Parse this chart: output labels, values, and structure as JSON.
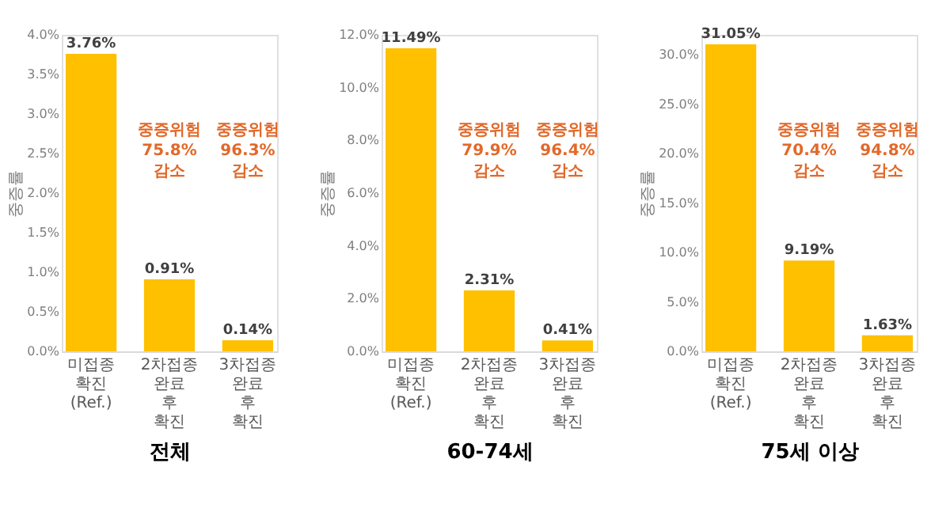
{
  "chart_data": [
    {
      "type": "bar",
      "xlabel": "전체",
      "ylabel": "중증률",
      "categories": [
        "미접종 확진\n(Ref.)",
        "2차접종\n완료 후\n확진",
        "3차접종\n완료 후\n확진"
      ],
      "values": [
        3.76,
        0.91,
        0.14
      ],
      "color": "#ffc000",
      "value_labels": [
        "3.76%",
        "0.91%",
        "0.14%"
      ],
      "ylim": [
        0,
        4
      ],
      "yticks": [
        {
          "value": 0,
          "label": "0.0%"
        },
        {
          "value": 0.5,
          "label": "0.5%"
        },
        {
          "value": 1,
          "label": "1.0%"
        },
        {
          "value": 1.5,
          "label": "1.5%"
        },
        {
          "value": 2,
          "label": "2.0%"
        },
        {
          "value": 2.5,
          "label": "2.5%"
        },
        {
          "value": 3,
          "label": "3.0%"
        },
        {
          "value": 3.5,
          "label": "3.5%"
        },
        {
          "value": 4,
          "label": "4.0%"
        }
      ],
      "annotations": [
        "중증위험\n75.8%\n감소",
        "중증위험\n96.3%\n감소"
      ],
      "grid": false
    },
    {
      "type": "bar",
      "xlabel": "60-74세",
      "ylabel": "중증률",
      "categories": [
        "미접종 확진\n(Ref.)",
        "2차접종\n완료 후\n확진",
        "3차접종\n완료 후\n확진"
      ],
      "values": [
        11.49,
        2.31,
        0.41
      ],
      "color": "#ffc000",
      "value_labels": [
        "11.49%",
        "2.31%",
        "0.41%"
      ],
      "ylim": [
        0,
        12
      ],
      "yticks": [
        {
          "value": 0,
          "label": "0.0%"
        },
        {
          "value": 2,
          "label": "2.0%"
        },
        {
          "value": 4,
          "label": "4.0%"
        },
        {
          "value": 6,
          "label": "6.0%"
        },
        {
          "value": 8,
          "label": "8.0%"
        },
        {
          "value": 10,
          "label": "10.0%"
        },
        {
          "value": 12,
          "label": "12.0%"
        }
      ],
      "annotations": [
        "중증위험\n79.9%\n감소",
        "중증위험\n96.4%\n감소"
      ],
      "grid": false
    },
    {
      "type": "bar",
      "xlabel": "75세 이상",
      "ylabel": "중증률",
      "categories": [
        "미접종 확진\n(Ref.)",
        "2차접종\n완료 후\n확진",
        "3차접종\n완료 후\n확진"
      ],
      "values": [
        31.05,
        9.19,
        1.63
      ],
      "color": "#ffc000",
      "value_labels": [
        "31.05%",
        "9.19%",
        "1.63%"
      ],
      "ylim": [
        0,
        32
      ],
      "yticks": [
        {
          "value": 0,
          "label": "0.0%"
        },
        {
          "value": 5,
          "label": "5.0%"
        },
        {
          "value": 10,
          "label": "10.0%"
        },
        {
          "value": 15,
          "label": "15.0%"
        },
        {
          "value": 20,
          "label": "20.0%"
        },
        {
          "value": 25,
          "label": "25.0%"
        },
        {
          "value": 30,
          "label": "30.0%"
        }
      ],
      "annotations": [
        "중증위험\n70.4%\n감소",
        "중증위험\n94.8%\n감소"
      ],
      "grid": false
    }
  ]
}
